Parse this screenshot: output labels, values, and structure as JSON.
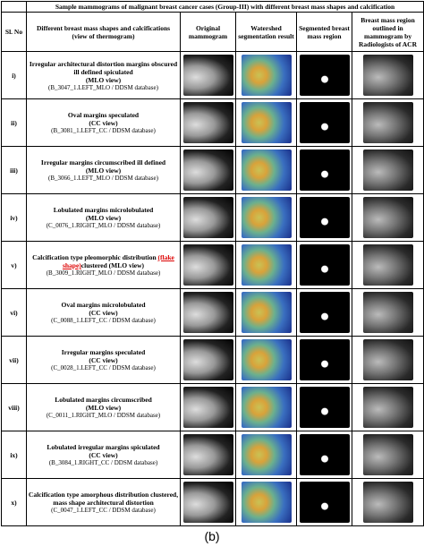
{
  "table": {
    "caption": "Sample mammograms of malignant breast cancer cases (Group-III) with different breast mass shapes and calcification",
    "headers": [
      "Sl. No",
      "Different breast mass shapes and calcifications",
      "(view of thermogram)",
      "Original mammogram",
      "Watershed segmentation result",
      "Segmented breast mass region",
      "Breast mass region outlined in mammogram by Radiologists of ACR"
    ],
    "rows": [
      {
        "no": "i)",
        "title": "Irregular architectural distortion margins obscured ill defined spiculated",
        "view": "(MLO view)",
        "source": "(B_3047_1.LEFT_MLO / DDSM database)"
      },
      {
        "no": "ii)",
        "title": "Oval margins speculated",
        "view": "(CC view)",
        "source": "(B_3081_1.LEFT_CC / DDSM database)"
      },
      {
        "no": "iii)",
        "title": "Irregular margins circumscribed ill defined",
        "view": "(MLO view)",
        "source": "(B_3066_1.LEFT_MLO / DDSM database)"
      },
      {
        "no": "iv)",
        "title": "Lobulated margins microlobulated",
        "view": "(MLO view)",
        "source": "(C_0076_1.RIGHT_MLO / DDSM database)"
      },
      {
        "no": "v)",
        "title": "Calcification type pleomorphic distribution",
        "highlight": "(flake shape)",
        "view": "clustered (MLO view)",
        "source": "(B_3009_1.RIGHT_MLO / DDSM database)"
      },
      {
        "no": "vi)",
        "title": "Oval margins microlobulated",
        "view": "(CC view)",
        "source": "(C_0088_1.LEFT_CC / DDSM database)"
      },
      {
        "no": "vii)",
        "title": "Irregular margins speculated",
        "view": "(CC view)",
        "source": "(C_0028_1.LEFT_CC / DDSM database)"
      },
      {
        "no": "viii)",
        "title": "Lobulated margins circumscribed",
        "view": "(MLO view)",
        "source": "(C_0011_1.RIGHT_MLO / DDSM database)"
      },
      {
        "no": "ix)",
        "title": "Lobulated irregular margins spiculated",
        "view": "(CC view)",
        "source": "(B_3084_1.RIGHT_CC / DDSM database)"
      },
      {
        "no": "x)",
        "title": "Calcification type amorphous distribution clustered, mass shape architectural distortion",
        "source": "(C_0047_1.LEFT_CC / DDSM database)"
      }
    ]
  },
  "label": "(b)"
}
